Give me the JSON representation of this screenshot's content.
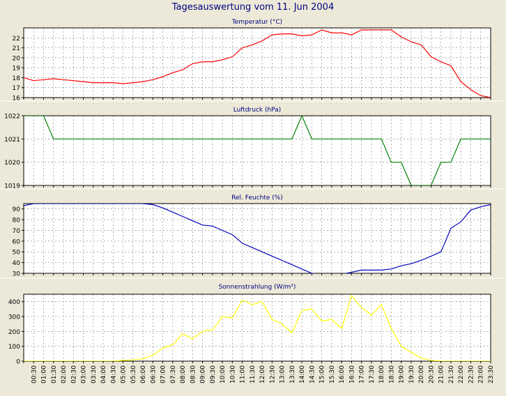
{
  "title": "Tagesauswertung vom 11. Jun 2004",
  "colors": {
    "background": "#ece9d8",
    "plot_background": "#ffffff",
    "title_text": "#000080",
    "grid": "#7a7a7a",
    "axis": "#000000",
    "separator": "#ffffff"
  },
  "chart_data": [
    {
      "type": "line",
      "title": "Temperatur (°C)",
      "color": "#ff0000",
      "grid": true,
      "ylim": [
        16,
        23
      ],
      "yticks": [
        16,
        17,
        18,
        19,
        20,
        21,
        22
      ],
      "x": [
        "00:00",
        "00:30",
        "01:00",
        "01:30",
        "02:00",
        "02:30",
        "03:00",
        "03:30",
        "04:00",
        "04:30",
        "05:00",
        "05:30",
        "06:00",
        "06:30",
        "07:00",
        "07:30",
        "08:00",
        "08:30",
        "09:00",
        "09:30",
        "10:00",
        "10:30",
        "11:00",
        "11:30",
        "12:00",
        "12:30",
        "13:00",
        "13:30",
        "14:00",
        "14:30",
        "15:00",
        "15:30",
        "16:00",
        "16:30",
        "17:00",
        "17:30",
        "18:00",
        "18:30",
        "19:00",
        "19:30",
        "20:00",
        "20:30",
        "21:00",
        "21:30",
        "22:00",
        "22:30",
        "23:00",
        "23:30"
      ],
      "values": [
        18.0,
        17.7,
        17.8,
        17.9,
        17.8,
        17.7,
        17.6,
        17.5,
        17.5,
        17.5,
        17.4,
        17.5,
        17.6,
        17.8,
        18.1,
        18.5,
        18.8,
        19.4,
        19.6,
        19.6,
        19.8,
        20.1,
        21.0,
        21.3,
        21.7,
        22.3,
        22.4,
        22.4,
        22.2,
        22.3,
        22.8,
        22.5,
        22.5,
        22.3,
        22.8,
        22.8,
        22.8,
        22.8,
        22.1,
        21.6,
        21.3,
        20.1,
        19.6,
        19.2,
        17.6,
        16.8,
        16.2,
        16.0
      ]
    },
    {
      "type": "line",
      "title": "Luftdruck (hPa)",
      "color": "#008000",
      "grid": true,
      "ylim": [
        1019,
        1022
      ],
      "yticks": [
        1019,
        1020,
        1021,
        1022
      ],
      "x": [
        "00:00",
        "00:30",
        "01:00",
        "01:30",
        "02:00",
        "02:30",
        "03:00",
        "03:30",
        "04:00",
        "04:30",
        "05:00",
        "05:30",
        "06:00",
        "06:30",
        "07:00",
        "07:30",
        "08:00",
        "08:30",
        "09:00",
        "09:30",
        "10:00",
        "10:30",
        "11:00",
        "11:30",
        "12:00",
        "12:30",
        "13:00",
        "13:30",
        "14:00",
        "14:30",
        "15:00",
        "15:30",
        "16:00",
        "16:30",
        "17:00",
        "17:30",
        "18:00",
        "18:30",
        "19:00",
        "19:30",
        "20:00",
        "20:30",
        "21:00",
        "21:30",
        "22:00",
        "22:30",
        "23:00",
        "23:30"
      ],
      "values": [
        1022,
        1022,
        1022,
        1021,
        1021,
        1021,
        1021,
        1021,
        1021,
        1021,
        1021,
        1021,
        1021,
        1021,
        1021,
        1021,
        1021,
        1021,
        1021,
        1021,
        1021,
        1021,
        1021,
        1021,
        1021,
        1021,
        1021,
        1021,
        1022,
        1021,
        1021,
        1021,
        1021,
        1021,
        1021,
        1021,
        1021,
        1020,
        1020,
        1019,
        1019,
        1019,
        1020,
        1020,
        1021,
        1021,
        1021,
        1021
      ]
    },
    {
      "type": "line",
      "title": "Rel. Feuchte (%)",
      "color": "#0000c0",
      "grid": true,
      "ylim": [
        30,
        95
      ],
      "yticks": [
        30,
        40,
        50,
        60,
        70,
        80,
        90
      ],
      "x": [
        "00:00",
        "00:30",
        "01:00",
        "01:30",
        "02:00",
        "02:30",
        "03:00",
        "03:30",
        "04:00",
        "04:30",
        "05:00",
        "05:30",
        "06:00",
        "06:30",
        "07:00",
        "07:30",
        "08:00",
        "08:30",
        "09:00",
        "09:30",
        "10:00",
        "10:30",
        "11:00",
        "11:30",
        "12:00",
        "12:30",
        "13:00",
        "13:30",
        "14:00",
        "14:30",
        "15:00",
        "15:30",
        "16:00",
        "16:30",
        "17:00",
        "17:30",
        "18:00",
        "18:30",
        "19:00",
        "19:30",
        "20:00",
        "20:30",
        "21:00",
        "21:30",
        "22:00",
        "22:30",
        "23:00",
        "23:30"
      ],
      "values": [
        93,
        95,
        95,
        95,
        95,
        95,
        95,
        95,
        95,
        95,
        95,
        95,
        95,
        94,
        91,
        87,
        83,
        79,
        75,
        74,
        70,
        66,
        58,
        54,
        50,
        46,
        42,
        38,
        34,
        30,
        29,
        29,
        29,
        31,
        33,
        33,
        33,
        34,
        37,
        39,
        42,
        46,
        50,
        72,
        78,
        89,
        92,
        94
      ]
    },
    {
      "type": "line",
      "title": "Sonnenstrahlung (W/m²)",
      "color": "#ffff00",
      "grid": true,
      "ylim": [
        0,
        450
      ],
      "yticks": [
        0,
        100,
        200,
        300,
        400
      ],
      "x": [
        "00:00",
        "00:30",
        "01:00",
        "01:30",
        "02:00",
        "02:30",
        "03:00",
        "03:30",
        "04:00",
        "04:30",
        "05:00",
        "05:30",
        "06:00",
        "06:30",
        "07:00",
        "07:30",
        "08:00",
        "08:30",
        "09:00",
        "09:30",
        "10:00",
        "10:30",
        "11:00",
        "11:30",
        "12:00",
        "12:30",
        "13:00",
        "13:30",
        "14:00",
        "14:30",
        "15:00",
        "15:30",
        "16:00",
        "16:30",
        "17:00",
        "17:30",
        "18:00",
        "18:30",
        "19:00",
        "19:30",
        "20:00",
        "20:30",
        "21:00",
        "21:30",
        "22:00",
        "22:30",
        "23:00",
        "23:30"
      ],
      "values": [
        0,
        0,
        0,
        0,
        0,
        0,
        0,
        0,
        0,
        0,
        5,
        8,
        15,
        40,
        90,
        110,
        185,
        150,
        200,
        210,
        300,
        290,
        410,
        380,
        400,
        280,
        250,
        190,
        340,
        350,
        270,
        280,
        220,
        440,
        360,
        310,
        380,
        220,
        100,
        60,
        20,
        5,
        0,
        0,
        0,
        0,
        0,
        0
      ]
    }
  ],
  "x_tick_labels": [
    "00:30",
    "01:00",
    "01:30",
    "02:00",
    "02:30",
    "03:00",
    "03:30",
    "04:00",
    "04:30",
    "05:00",
    "05:30",
    "06:00",
    "06:30",
    "07:00",
    "07:30",
    "08:00",
    "08:30",
    "09:00",
    "09:30",
    "10:00",
    "10:30",
    "11:00",
    "11:30",
    "12:00",
    "12:30",
    "13:00",
    "13:30",
    "14:00",
    "14:30",
    "15:00",
    "15:30",
    "16:00",
    "16:30",
    "17:00",
    "17:30",
    "18:00",
    "18:30",
    "19:00",
    "19:30",
    "20:00",
    "20:30",
    "21:00",
    "21:30",
    "22:00",
    "22:30",
    "23:00",
    "23:30"
  ]
}
